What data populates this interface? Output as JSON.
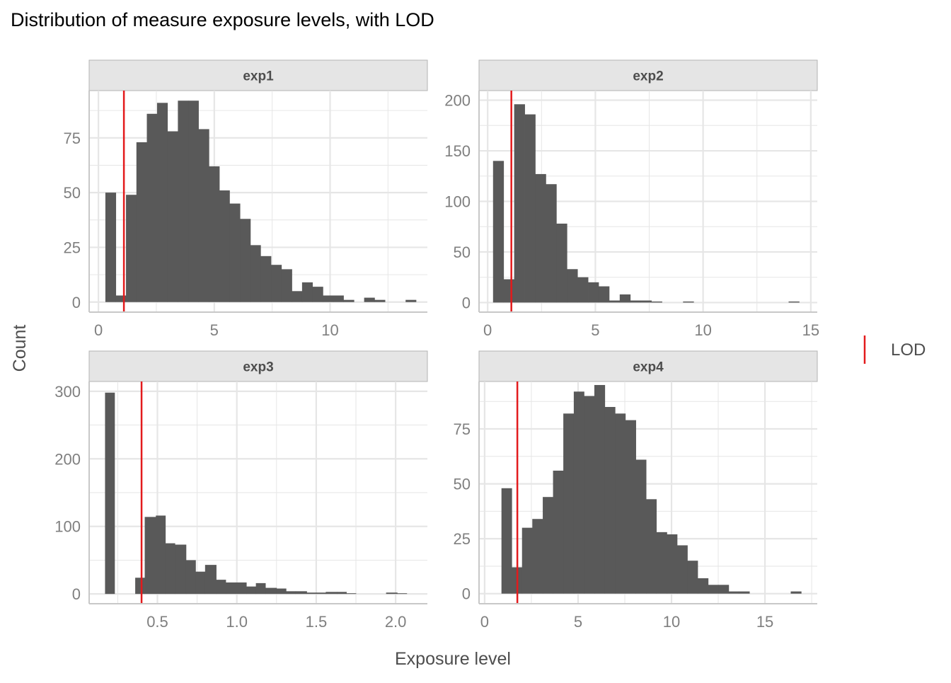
{
  "chart_data": {
    "type": "bar",
    "title": "Distribution of measure exposure levels, with LOD",
    "xlabel": "Exposure level",
    "ylabel": "Count",
    "grid": true,
    "legend": {
      "position": "right",
      "entries": [
        {
          "label": "LOD",
          "color": "#e31a1c",
          "key": "vertical-line"
        }
      ]
    },
    "colors": {
      "bar": "#595959",
      "lod_line": "#e31a1c",
      "strip_background": "#e5e5e5",
      "strip_border": "#b3b3b3",
      "grid": "#e6e6e6",
      "axis_text": "#7f7f7f",
      "title_text": "#000000",
      "axis_title_text": "#4d4d4d"
    },
    "facets": [
      {
        "strip_label": "exp1",
        "xlim": [
          -0.4,
          14.2
        ],
        "ylim": [
          -4.6,
          96.6
        ],
        "xticks": [
          0,
          5,
          10
        ],
        "xtick_labels": [
          "0",
          "5",
          "10"
        ],
        "yticks": [
          0,
          25,
          50,
          75
        ],
        "ytick_labels": [
          "0",
          "25",
          "50",
          "75"
        ],
        "lod": 1.1,
        "bins": [
          {
            "x0": 0.3,
            "x1": 0.75,
            "count": 50
          },
          {
            "x0": 0.75,
            "x1": 1.19,
            "count": 3
          },
          {
            "x0": 1.19,
            "x1": 1.64,
            "count": 49
          },
          {
            "x0": 1.64,
            "x1": 2.09,
            "count": 73
          },
          {
            "x0": 2.09,
            "x1": 2.53,
            "count": 86
          },
          {
            "x0": 2.53,
            "x1": 2.98,
            "count": 91
          },
          {
            "x0": 2.98,
            "x1": 3.43,
            "count": 78
          },
          {
            "x0": 3.43,
            "x1": 3.88,
            "count": 92
          },
          {
            "x0": 3.88,
            "x1": 4.32,
            "count": 92
          },
          {
            "x0": 4.32,
            "x1": 4.77,
            "count": 79
          },
          {
            "x0": 4.77,
            "x1": 5.22,
            "count": 62
          },
          {
            "x0": 5.22,
            "x1": 5.66,
            "count": 51
          },
          {
            "x0": 5.66,
            "x1": 6.11,
            "count": 45
          },
          {
            "x0": 6.11,
            "x1": 6.56,
            "count": 38
          },
          {
            "x0": 6.56,
            "x1": 7.0,
            "count": 26
          },
          {
            "x0": 7.0,
            "x1": 7.45,
            "count": 21
          },
          {
            "x0": 7.45,
            "x1": 7.9,
            "count": 17
          },
          {
            "x0": 7.9,
            "x1": 8.35,
            "count": 15
          },
          {
            "x0": 8.35,
            "x1": 8.79,
            "count": 5
          },
          {
            "x0": 8.79,
            "x1": 9.24,
            "count": 9
          },
          {
            "x0": 9.24,
            "x1": 9.69,
            "count": 7
          },
          {
            "x0": 9.69,
            "x1": 10.13,
            "count": 3
          },
          {
            "x0": 10.13,
            "x1": 10.58,
            "count": 3
          },
          {
            "x0": 10.58,
            "x1": 11.03,
            "count": 1
          },
          {
            "x0": 11.03,
            "x1": 11.47,
            "count": 0
          },
          {
            "x0": 11.47,
            "x1": 11.92,
            "count": 2
          },
          {
            "x0": 11.92,
            "x1": 12.37,
            "count": 1
          },
          {
            "x0": 12.37,
            "x1": 12.82,
            "count": 0
          },
          {
            "x0": 12.82,
            "x1": 13.26,
            "count": 0
          },
          {
            "x0": 13.26,
            "x1": 13.71,
            "count": 1
          }
        ]
      },
      {
        "strip_label": "exp2",
        "xlim": [
          -0.4,
          15.3
        ],
        "ylim": [
          -9.5,
          209.5
        ],
        "xticks": [
          0,
          5,
          10,
          15
        ],
        "xtick_labels": [
          "0",
          "5",
          "10",
          "15"
        ],
        "yticks": [
          0,
          50,
          100,
          150,
          200
        ],
        "ytick_labels": [
          "0",
          "50",
          "100",
          "150",
          "200"
        ],
        "lod": 1.1,
        "bins": [
          {
            "x0": 0.25,
            "x1": 0.74,
            "count": 140
          },
          {
            "x0": 0.74,
            "x1": 1.23,
            "count": 23
          },
          {
            "x0": 1.23,
            "x1": 1.72,
            "count": 196
          },
          {
            "x0": 1.72,
            "x1": 2.21,
            "count": 186
          },
          {
            "x0": 2.21,
            "x1": 2.7,
            "count": 127
          },
          {
            "x0": 2.7,
            "x1": 3.19,
            "count": 117
          },
          {
            "x0": 3.19,
            "x1": 3.68,
            "count": 78
          },
          {
            "x0": 3.68,
            "x1": 4.17,
            "count": 33
          },
          {
            "x0": 4.17,
            "x1": 4.66,
            "count": 25
          },
          {
            "x0": 4.66,
            "x1": 5.15,
            "count": 20
          },
          {
            "x0": 5.15,
            "x1": 5.64,
            "count": 16
          },
          {
            "x0": 5.64,
            "x1": 6.13,
            "count": 2
          },
          {
            "x0": 6.13,
            "x1": 6.62,
            "count": 8
          },
          {
            "x0": 6.62,
            "x1": 7.11,
            "count": 2
          },
          {
            "x0": 7.11,
            "x1": 7.6,
            "count": 2
          },
          {
            "x0": 7.6,
            "x1": 8.09,
            "count": 1
          },
          {
            "x0": 8.09,
            "x1": 8.58,
            "count": 0
          },
          {
            "x0": 8.58,
            "x1": 9.07,
            "count": 0
          },
          {
            "x0": 9.07,
            "x1": 9.56,
            "count": 1
          },
          {
            "x0": 9.56,
            "x1": 10.05,
            "count": 0
          },
          {
            "x0": 10.05,
            "x1": 10.54,
            "count": 0
          },
          {
            "x0": 10.54,
            "x1": 11.03,
            "count": 0
          },
          {
            "x0": 11.03,
            "x1": 11.52,
            "count": 0
          },
          {
            "x0": 11.52,
            "x1": 12.01,
            "count": 0
          },
          {
            "x0": 12.01,
            "x1": 12.5,
            "count": 0
          },
          {
            "x0": 12.5,
            "x1": 12.99,
            "count": 0
          },
          {
            "x0": 12.99,
            "x1": 13.48,
            "count": 0
          },
          {
            "x0": 13.48,
            "x1": 13.97,
            "count": 0
          },
          {
            "x0": 13.97,
            "x1": 14.46,
            "count": 1
          }
        ]
      },
      {
        "strip_label": "exp3",
        "xlim": [
          0.07,
          2.2
        ],
        "ylim": [
          -14.5,
          314.5
        ],
        "xticks": [
          0.5,
          1.0,
          1.5,
          2.0
        ],
        "xtick_labels": [
          "0.5",
          "1.0",
          "1.5",
          "2.0"
        ],
        "yticks": [
          0,
          100,
          200,
          300
        ],
        "ytick_labels": [
          "0",
          "100",
          "200",
          "300"
        ],
        "lod": 0.4,
        "bins": [
          {
            "x0": 0.17,
            "x1": 0.23,
            "count": 298
          },
          {
            "x0": 0.23,
            "x1": 0.3,
            "count": 0
          },
          {
            "x0": 0.3,
            "x1": 0.36,
            "count": 0
          },
          {
            "x0": 0.36,
            "x1": 0.42,
            "count": 24
          },
          {
            "x0": 0.42,
            "x1": 0.49,
            "count": 114
          },
          {
            "x0": 0.49,
            "x1": 0.55,
            "count": 116
          },
          {
            "x0": 0.55,
            "x1": 0.61,
            "count": 75
          },
          {
            "x0": 0.61,
            "x1": 0.68,
            "count": 73
          },
          {
            "x0": 0.68,
            "x1": 0.74,
            "count": 50
          },
          {
            "x0": 0.74,
            "x1": 0.8,
            "count": 33
          },
          {
            "x0": 0.8,
            "x1": 0.87,
            "count": 43
          },
          {
            "x0": 0.87,
            "x1": 0.93,
            "count": 21
          },
          {
            "x0": 0.93,
            "x1": 0.99,
            "count": 17
          },
          {
            "x0": 0.99,
            "x1": 1.06,
            "count": 17
          },
          {
            "x0": 1.06,
            "x1": 1.12,
            "count": 11
          },
          {
            "x0": 1.12,
            "x1": 1.18,
            "count": 16
          },
          {
            "x0": 1.18,
            "x1": 1.25,
            "count": 9
          },
          {
            "x0": 1.25,
            "x1": 1.31,
            "count": 8
          },
          {
            "x0": 1.31,
            "x1": 1.37,
            "count": 4
          },
          {
            "x0": 1.37,
            "x1": 1.44,
            "count": 4
          },
          {
            "x0": 1.44,
            "x1": 1.5,
            "count": 2
          },
          {
            "x0": 1.5,
            "x1": 1.56,
            "count": 2
          },
          {
            "x0": 1.56,
            "x1": 1.63,
            "count": 3
          },
          {
            "x0": 1.63,
            "x1": 1.69,
            "count": 3
          },
          {
            "x0": 1.69,
            "x1": 1.75,
            "count": 1
          },
          {
            "x0": 1.75,
            "x1": 1.82,
            "count": 0
          },
          {
            "x0": 1.82,
            "x1": 1.88,
            "count": 0
          },
          {
            "x0": 1.88,
            "x1": 1.94,
            "count": 0
          },
          {
            "x0": 1.94,
            "x1": 2.01,
            "count": 2
          },
          {
            "x0": 2.01,
            "x1": 2.07,
            "count": 1
          }
        ]
      },
      {
        "strip_label": "exp4",
        "xlim": [
          -0.3,
          17.8
        ],
        "ylim": [
          -4.6,
          96.6
        ],
        "xticks": [
          0,
          5,
          10,
          15
        ],
        "xtick_labels": [
          "0",
          "5",
          "10",
          "15"
        ],
        "yticks": [
          0,
          25,
          50,
          75
        ],
        "ytick_labels": [
          "0",
          "25",
          "50",
          "75"
        ],
        "lod": 1.75,
        "bins": [
          {
            "x0": 0.9,
            "x1": 1.45,
            "count": 48
          },
          {
            "x0": 1.45,
            "x1": 2.0,
            "count": 12
          },
          {
            "x0": 2.0,
            "x1": 2.55,
            "count": 30
          },
          {
            "x0": 2.55,
            "x1": 3.11,
            "count": 34
          },
          {
            "x0": 3.11,
            "x1": 3.66,
            "count": 44
          },
          {
            "x0": 3.66,
            "x1": 4.21,
            "count": 56
          },
          {
            "x0": 4.21,
            "x1": 4.77,
            "count": 82
          },
          {
            "x0": 4.77,
            "x1": 5.32,
            "count": 92
          },
          {
            "x0": 5.32,
            "x1": 5.87,
            "count": 90
          },
          {
            "x0": 5.87,
            "x1": 6.43,
            "count": 95
          },
          {
            "x0": 6.43,
            "x1": 6.98,
            "count": 85
          },
          {
            "x0": 6.98,
            "x1": 7.53,
            "count": 82
          },
          {
            "x0": 7.53,
            "x1": 8.09,
            "count": 79
          },
          {
            "x0": 8.09,
            "x1": 8.64,
            "count": 61
          },
          {
            "x0": 8.64,
            "x1": 9.19,
            "count": 43
          },
          {
            "x0": 9.19,
            "x1": 9.75,
            "count": 28
          },
          {
            "x0": 9.75,
            "x1": 10.3,
            "count": 27
          },
          {
            "x0": 10.3,
            "x1": 10.85,
            "count": 22
          },
          {
            "x0": 10.85,
            "x1": 11.4,
            "count": 15
          },
          {
            "x0": 11.4,
            "x1": 11.96,
            "count": 7
          },
          {
            "x0": 11.96,
            "x1": 12.51,
            "count": 4
          },
          {
            "x0": 12.51,
            "x1": 13.06,
            "count": 4
          },
          {
            "x0": 13.06,
            "x1": 13.62,
            "count": 1
          },
          {
            "x0": 13.62,
            "x1": 14.17,
            "count": 1
          },
          {
            "x0": 14.17,
            "x1": 14.72,
            "count": 0
          },
          {
            "x0": 14.72,
            "x1": 15.28,
            "count": 0
          },
          {
            "x0": 15.28,
            "x1": 15.83,
            "count": 0
          },
          {
            "x0": 15.83,
            "x1": 16.38,
            "count": 0
          },
          {
            "x0": 16.38,
            "x1": 16.94,
            "count": 1
          }
        ]
      }
    ]
  }
}
